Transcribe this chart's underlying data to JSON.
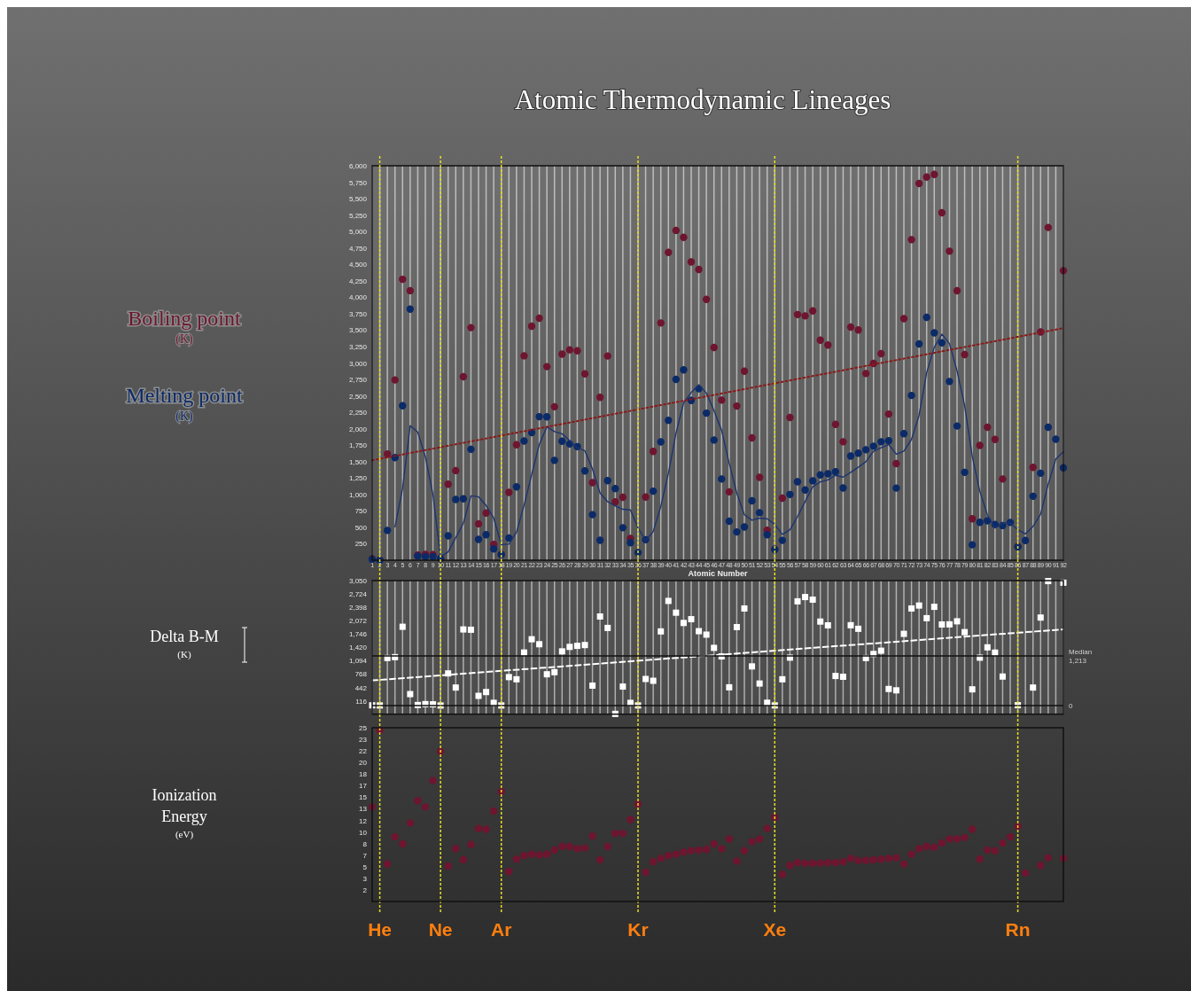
{
  "chart_data": [
    {
      "type": "scatter",
      "title": "Atomic Thermodynamic Lineages",
      "xlabel": "Atomic Number",
      "marker": "circle",
      "legend": "left",
      "grid": "x",
      "x": [
        1,
        2,
        3,
        4,
        5,
        6,
        7,
        8,
        9,
        10,
        11,
        12,
        13,
        14,
        15,
        16,
        17,
        18,
        19,
        20,
        21,
        22,
        23,
        24,
        25,
        26,
        27,
        28,
        29,
        30,
        31,
        32,
        33,
        34,
        35,
        36,
        37,
        38,
        39,
        40,
        41,
        42,
        43,
        44,
        45,
        46,
        47,
        48,
        49,
        50,
        51,
        52,
        53,
        54,
        55,
        56,
        57,
        58,
        59,
        60,
        61,
        62,
        63,
        64,
        65,
        66,
        67,
        68,
        69,
        70,
        71,
        72,
        73,
        74,
        75,
        76,
        77,
        78,
        79,
        80,
        81,
        82,
        83,
        84,
        85,
        86,
        87,
        88,
        89,
        90,
        91,
        92
      ],
      "xlim": [
        1,
        92
      ],
      "xticks": [
        1,
        2,
        3,
        4,
        5,
        6,
        7,
        8,
        9,
        10,
        11,
        12,
        13,
        14,
        15,
        16,
        17,
        18,
        19,
        20,
        21,
        22,
        23,
        24,
        25,
        26,
        27,
        28,
        29,
        30,
        31,
        32,
        33,
        34,
        35,
        36,
        37,
        38,
        39,
        40,
        41,
        42,
        43,
        44,
        45,
        46,
        47,
        48,
        49,
        50,
        51,
        52,
        53,
        54,
        55,
        56,
        57,
        58,
        59,
        60,
        61,
        62,
        63,
        64,
        65,
        66,
        67,
        68,
        69,
        70,
        71,
        72,
        73,
        74,
        75,
        76,
        77,
        78,
        79,
        80,
        81,
        82,
        83,
        84,
        85,
        86,
        87,
        88,
        89,
        90,
        91,
        92
      ],
      "ylim": [
        0,
        6000
      ],
      "yticks": [
        250,
        500,
        750,
        {
          "value": 1000,
          "label": "1,000"
        },
        {
          "value": 1250,
          "label": "1,250"
        },
        {
          "value": 1500,
          "label": "1,500"
        },
        {
          "value": 1750,
          "label": "1,750"
        },
        {
          "value": 2000,
          "label": "2,000"
        },
        {
          "value": 2250,
          "label": "2,250"
        },
        {
          "value": 2500,
          "label": "2,500"
        },
        {
          "value": 2750,
          "label": "2,750"
        },
        {
          "value": 3000,
          "label": "3,000"
        },
        {
          "value": 3250,
          "label": "3,250"
        },
        {
          "value": 3500,
          "label": "3,500"
        },
        {
          "value": 3750,
          "label": "3,750"
        },
        {
          "value": 4000,
          "label": "4,000"
        },
        {
          "value": 4250,
          "label": "4,250"
        },
        {
          "value": 4500,
          "label": "4,500"
        },
        {
          "value": 4750,
          "label": "4,750"
        },
        {
          "value": 5000,
          "label": "5,000"
        },
        {
          "value": 5250,
          "label": "5,250"
        },
        {
          "value": 5500,
          "label": "5,500"
        },
        {
          "value": 5750,
          "label": "5,750"
        },
        {
          "value": 6000,
          "label": "6,000"
        }
      ],
      "series": [
        {
          "name": "Boiling point (K)",
          "color": "#6e1530",
          "values": [
            20,
            4,
            1615,
            2742,
            4273,
            4100,
            77,
            90,
            85,
            27,
            1156,
            1363,
            2792,
            3538,
            554,
            718,
            239,
            87,
            1032,
            1757,
            3109,
            3560,
            3680,
            2944,
            2334,
            3134,
            3200,
            3186,
            2835,
            1180,
            2477,
            3106,
            887,
            958,
            332,
            null,
            961,
            1655,
            3609,
            4682,
            5017,
            4912,
            4538,
            4423,
            3968,
            3236,
            2435,
            1040,
            2345,
            2875,
            1860,
            1261,
            457,
            165,
            944,
            2170,
            3737,
            3716,
            3793,
            3347,
            3273,
            2067,
            1802,
            3546,
            3503,
            2840,
            2993,
            3141,
            2223,
            1469,
            3675,
            4876,
            5731,
            5828,
            5869,
            5285,
            4701,
            4098,
            3129,
            630,
            1746,
            2022,
            1837,
            1235,
            null,
            211,
            null,
            1413,
            3471,
            5061,
            null,
            4404
          ]
        },
        {
          "name": "Melting point (K)",
          "color": "#0b2a68",
          "values": [
            14,
            1,
            454,
            1560,
            2350,
            3820,
            63,
            54,
            54,
            25,
            371,
            923,
            934,
            1687,
            317,
            388,
            172,
            84,
            337,
            1115,
            1814,
            1941,
            2183,
            2180,
            1519,
            1811,
            1768,
            1728,
            1358,
            693,
            303,
            1211,
            1090,
            494,
            266,
            116,
            312,
            1050,
            1799,
            2128,
            2750,
            2896,
            2430,
            2607,
            2237,
            1828,
            1235,
            594,
            430,
            505,
            904,
            723,
            387,
            161,
            302,
            1000,
            1193,
            1068,
            1208,
            1297,
            1315,
            1345,
            1099,
            1585,
            1629,
            1680,
            1734,
            1802,
            1818,
            1097,
            1925,
            2506,
            3290,
            3695,
            3459,
            3306,
            2719,
            2041,
            1337,
            234,
            577,
            601,
            544,
            527,
            575,
            202,
            300,
            973,
            1323,
            2023,
            1841,
            1405
          ]
        },
        {
          "type": "line",
          "marker": "none",
          "color": "#1c3570",
          "x": [
            4,
            5,
            6,
            7,
            8,
            9,
            10,
            11,
            12,
            13,
            14,
            15,
            16,
            17,
            18,
            19,
            20,
            21,
            22,
            23,
            24,
            25,
            26,
            27,
            28,
            29,
            30,
            31,
            32,
            33,
            34,
            35,
            36,
            37,
            38,
            39,
            40,
            41,
            42,
            43,
            44,
            45,
            46,
            47,
            48,
            49,
            50,
            51,
            52,
            53,
            54,
            55,
            56,
            57,
            58,
            59,
            60,
            61,
            62,
            63,
            64,
            65,
            66,
            67,
            68,
            69,
            70,
            71,
            72,
            73,
            74,
            75,
            76,
            77,
            78,
            79,
            80,
            81,
            82,
            83,
            84,
            85,
            86,
            87,
            88,
            89,
            90,
            91,
            92
          ],
          "values": [
            507,
            1091,
            2046,
            1948,
            1572,
            998,
            49,
            126,
            343,
            563,
            979,
            965,
            832,
            641,
            240,
            245,
            427,
            838,
            1302,
            1763,
            2030,
            1956,
            1923,
            1820,
            1707,
            1666,
            1387,
            1021,
            891,
            824,
            775,
            765,
            492,
            297,
            436,
            819,
            1322,
            1932,
            2393,
            2551,
            2671,
            2543,
            2276,
            1977,
            1474,
            1022,
            691,
            608,
            641,
            630,
            544,
            393,
            463,
            664,
            891,
            1117,
            1192,
            1222,
            1291,
            1264,
            1336,
            1415,
            1498,
            1657,
            1711,
            1759,
            1613,
            1661,
            1837,
            2205,
            2854,
            3238,
            3438,
            3295,
            2881,
            2351,
            1583,
            1047,
            687,
            489,
            562,
            562,
            462,
            401,
            513,
            700,
            1155,
            1540,
            1648
          ]
        },
        {
          "type": "line",
          "marker": "none",
          "color": "#8a1a1a",
          "line_style": "dotted",
          "x": [
            1,
            92
          ],
          "values": [
            1520,
            3530
          ]
        }
      ]
    },
    {
      "type": "scatter",
      "ylabel": "Delta B-M (K)",
      "marker": "square",
      "grid": "x",
      "tick_labels": "y",
      "x": [
        1,
        2,
        3,
        4,
        5,
        6,
        7,
        8,
        9,
        10,
        11,
        12,
        13,
        14,
        15,
        16,
        17,
        18,
        19,
        20,
        21,
        22,
        23,
        24,
        25,
        26,
        27,
        28,
        29,
        30,
        31,
        32,
        33,
        34,
        35,
        36,
        37,
        38,
        39,
        40,
        41,
        42,
        43,
        44,
        45,
        46,
        47,
        48,
        49,
        50,
        51,
        52,
        53,
        54,
        55,
        56,
        57,
        58,
        59,
        60,
        61,
        62,
        63,
        64,
        65,
        66,
        67,
        68,
        69,
        70,
        71,
        72,
        73,
        74,
        75,
        76,
        77,
        78,
        79,
        80,
        81,
        82,
        83,
        84,
        85,
        86,
        87,
        88,
        89,
        90,
        91,
        92
      ],
      "xlim": [
        1,
        92
      ],
      "xticks": [
        1,
        2,
        3,
        4,
        5,
        6,
        7,
        8,
        9,
        10,
        11,
        12,
        13,
        14,
        15,
        16,
        17,
        18,
        19,
        20,
        21,
        22,
        23,
        24,
        25,
        26,
        27,
        28,
        29,
        30,
        31,
        32,
        33,
        34,
        35,
        36,
        37,
        38,
        39,
        40,
        41,
        42,
        43,
        44,
        45,
        46,
        47,
        48,
        49,
        50,
        51,
        52,
        53,
        54,
        55,
        56,
        57,
        58,
        59,
        60,
        61,
        62,
        63,
        64,
        65,
        66,
        67,
        68,
        69,
        70,
        71,
        72,
        73,
        74,
        75,
        76,
        77,
        78,
        79,
        80,
        81,
        82,
        83,
        84,
        85,
        86,
        87,
        88,
        89,
        90,
        91,
        92
      ],
      "ylim": [
        -210,
        3050
      ],
      "yticks": [
        116,
        442,
        768,
        {
          "value": 1094,
          "label": "1,094"
        },
        {
          "value": 1420,
          "label": "1,420"
        },
        {
          "value": 1746,
          "label": "1,746"
        },
        {
          "value": 2072,
          "label": "2,072"
        },
        {
          "value": 2398,
          "label": "2,398"
        },
        {
          "value": 2724,
          "label": "2,724"
        },
        {
          "value": 3050,
          "label": "3,050"
        }
      ],
      "series": [
        {
          "color": "#ffffff",
          "values": [
            6,
            3,
            1161,
            1182,
            1923,
            280,
            14,
            36,
            31,
            2,
            785,
            440,
            1858,
            1851,
            237,
            330,
            67,
            3,
            695,
            642,
            1295,
            1619,
            1497,
            764,
            815,
            1323,
            1432,
            1458,
            1477,
            487,
            2174,
            1895,
            -203,
            464,
            66,
            4,
            649,
            605,
            1810,
            2554,
            2267,
            2016,
            2108,
            1816,
            1731,
            1408,
            1200,
            446,
            1915,
            2370,
            956,
            538,
            70,
            4,
            642,
            1170,
            2544,
            2648,
            2585,
            2050,
            1958,
            722,
            703,
            1961,
            1874,
            1160,
            1259,
            1339,
            405,
            372,
            1750,
            2370,
            2441,
            2133,
            2410,
            1979,
            1982,
            2057,
            1792,
            396,
            1169,
            1421,
            1293,
            708,
            null,
            9,
            null,
            440,
            2148,
            3038,
            null,
            2999
          ]
        },
        {
          "type": "line",
          "marker": "none",
          "color": "#ffffff",
          "line_style": "dashed",
          "x": [
            1,
            92
          ],
          "values": [
            614,
            1860
          ]
        }
      ],
      "ref_lines": [
        {
          "axis": "y",
          "value": 0,
          "label": "0",
          "color": "#111111"
        },
        {
          "axis": "y",
          "value": 1213,
          "label": "Median 1,213",
          "color": "#111111"
        }
      ]
    },
    {
      "type": "scatter",
      "ylabel": "Ionization Energy (eV)",
      "marker": "circle",
      "tick_labels": "y",
      "x": [
        1,
        2,
        3,
        4,
        5,
        6,
        7,
        8,
        9,
        10,
        11,
        12,
        13,
        14,
        15,
        16,
        17,
        18,
        19,
        20,
        21,
        22,
        23,
        24,
        25,
        26,
        27,
        28,
        29,
        30,
        31,
        32,
        33,
        34,
        35,
        36,
        37,
        38,
        39,
        40,
        41,
        42,
        43,
        44,
        45,
        46,
        47,
        48,
        49,
        50,
        51,
        52,
        53,
        54,
        55,
        56,
        57,
        58,
        59,
        60,
        61,
        62,
        63,
        64,
        65,
        66,
        67,
        68,
        69,
        70,
        71,
        72,
        73,
        74,
        75,
        76,
        77,
        78,
        79,
        80,
        81,
        82,
        83,
        84,
        85,
        86,
        87,
        88,
        89,
        90,
        91,
        92
      ],
      "xlim": [
        1,
        92
      ],
      "ylim": [
        0,
        25
      ],
      "yticks": [
        {
          "value": 1.667,
          "label": "2"
        },
        {
          "value": 3.333,
          "label": "3"
        },
        5,
        {
          "value": 6.667,
          "label": "7"
        },
        {
          "value": 8.333,
          "label": "8"
        },
        10,
        {
          "value": 11.667,
          "label": "12"
        },
        {
          "value": 13.333,
          "label": "13"
        },
        15,
        {
          "value": 16.667,
          "label": "17"
        },
        {
          "value": 18.333,
          "label": "18"
        },
        20,
        {
          "value": 21.667,
          "label": "22"
        },
        {
          "value": 23.333,
          "label": "23"
        },
        25
      ],
      "series": [
        {
          "color": "#6e1530",
          "values": [
            13.6,
            24.6,
            5.4,
            9.3,
            8.3,
            11.3,
            14.5,
            13.6,
            17.4,
            21.6,
            5.1,
            7.6,
            6.0,
            8.2,
            10.5,
            10.4,
            13.0,
            15.8,
            4.3,
            6.1,
            6.6,
            6.8,
            6.7,
            6.8,
            7.4,
            7.9,
            7.9,
            7.6,
            7.7,
            9.4,
            6.0,
            7.9,
            9.8,
            9.8,
            11.8,
            14.0,
            4.2,
            5.7,
            6.2,
            6.6,
            6.8,
            7.1,
            7.3,
            7.4,
            7.5,
            8.3,
            7.6,
            9.0,
            5.8,
            7.3,
            8.6,
            9.0,
            10.5,
            12.1,
            3.9,
            5.2,
            5.6,
            5.5,
            5.5,
            5.5,
            5.6,
            5.6,
            5.7,
            6.2,
            5.9,
            5.9,
            6.0,
            6.1,
            6.2,
            6.3,
            5.4,
            6.8,
            7.6,
            7.9,
            7.8,
            8.4,
            9.0,
            9.0,
            9.2,
            10.4,
            6.1,
            7.4,
            7.3,
            8.4,
            9.3,
            10.8,
            4.1,
            null,
            5.2,
            6.3,
            null,
            6.2
          ]
        }
      ],
      "ref_lines": [
        {
          "axis": "x",
          "value": 2,
          "label": "He",
          "color": "#e8e020"
        },
        {
          "axis": "x",
          "value": 10,
          "label": "Ne",
          "color": "#e8e020"
        },
        {
          "axis": "x",
          "value": 18,
          "label": "Ar",
          "color": "#e8e020"
        },
        {
          "axis": "x",
          "value": 36,
          "label": "Kr",
          "color": "#e8e020"
        },
        {
          "axis": "x",
          "value": 54,
          "label": "Xe",
          "color": "#e8e020"
        },
        {
          "axis": "x",
          "value": 86,
          "label": "Rn",
          "color": "#e8e020"
        }
      ]
    }
  ]
}
